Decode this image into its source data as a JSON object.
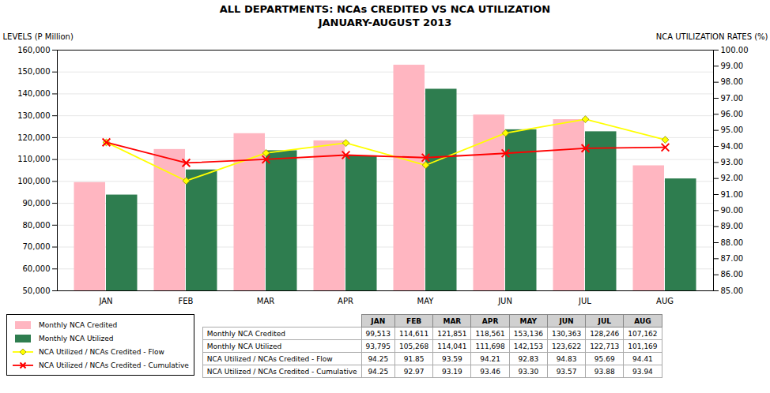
{
  "chart_data": {
    "type": "bar",
    "title": "ALL DEPARTMENTS: NCAs CREDITED VS NCA UTILIZATION",
    "subtitle": "JANUARY-AUGUST 2013",
    "categories": [
      "JAN",
      "FEB",
      "MAR",
      "APR",
      "MAY",
      "JUN",
      "JUL",
      "AUG"
    ],
    "series": [
      {
        "name": "Monthly NCA Credited",
        "type": "bar",
        "color": "#FFB6C1",
        "values": [
          99513,
          114611,
          121851,
          118561,
          153136,
          130363,
          128246,
          107162
        ],
        "value_labels": [
          "99,513",
          "114,611",
          "121,851",
          "118,561",
          "153,136",
          "130,363",
          "128,246",
          "107,162"
        ]
      },
      {
        "name": "Monthly NCA Utilized",
        "type": "bar",
        "color": "#2E7D4F",
        "values": [
          93795,
          105268,
          114041,
          111698,
          142153,
          123622,
          122713,
          101169
        ],
        "value_labels": [
          "93,795",
          "105,268",
          "114,041",
          "111,698",
          "142,153",
          "123,622",
          "122,713",
          "101,169"
        ]
      },
      {
        "name": "NCA Utilized / NCAs Credited - Flow",
        "type": "line",
        "axis": "y2",
        "marker": "diamond",
        "color": "#FFFF00",
        "values": [
          94.25,
          91.85,
          93.59,
          94.21,
          92.83,
          94.83,
          95.69,
          94.41
        ],
        "value_labels": [
          "94.25",
          "91.85",
          "93.59",
          "94.21",
          "92.83",
          "94.83",
          "95.69",
          "94.41"
        ]
      },
      {
        "name": "NCA Utilized / NCAs Credited - Cumulative",
        "type": "line",
        "axis": "y2",
        "marker": "x",
        "color": "#FF0000",
        "values": [
          94.25,
          92.97,
          93.19,
          93.46,
          93.3,
          93.57,
          93.88,
          93.94
        ],
        "value_labels": [
          "94.25",
          "92.97",
          "93.19",
          "93.46",
          "93.30",
          "93.57",
          "93.88",
          "93.94"
        ]
      }
    ],
    "ylabel": "LEVELS (P Million)",
    "y2label": "NCA UTILIZATION RATES (%)",
    "ylim": [
      50000,
      160000
    ],
    "yticks": [
      {
        "value": 50000,
        "label": "50,000"
      },
      {
        "value": 60000,
        "label": "60,000"
      },
      {
        "value": 70000,
        "label": "70,000"
      },
      {
        "value": 80000,
        "label": "80,000"
      },
      {
        "value": 90000,
        "label": "90,000"
      },
      {
        "value": 100000,
        "label": "100,000"
      },
      {
        "value": 110000,
        "label": "110,000"
      },
      {
        "value": 120000,
        "label": "120,000"
      },
      {
        "value": 130000,
        "label": "130,000"
      },
      {
        "value": 140000,
        "label": "140,000"
      },
      {
        "value": 150000,
        "label": "150,000"
      },
      {
        "value": 160000,
        "label": "160,000"
      }
    ],
    "y2lim": [
      85.0,
      100.0
    ],
    "y2ticks": [
      {
        "value": 85,
        "label": "85.00"
      },
      {
        "value": 86,
        "label": "86.00"
      },
      {
        "value": 87,
        "label": "87.00"
      },
      {
        "value": 88,
        "label": "88.00"
      },
      {
        "value": 89,
        "label": "89.00"
      },
      {
        "value": 90,
        "label": "90.00"
      },
      {
        "value": 91,
        "label": "91.00"
      },
      {
        "value": 92,
        "label": "92.00"
      },
      {
        "value": 93,
        "label": "93.00"
      },
      {
        "value": 94,
        "label": "94.00"
      },
      {
        "value": 95,
        "label": "95.00"
      },
      {
        "value": 96,
        "label": "96.00"
      },
      {
        "value": 97,
        "label": "97.00"
      },
      {
        "value": 98,
        "label": "98.00"
      },
      {
        "value": 99,
        "label": "99.00"
      },
      {
        "value": 100,
        "label": "100.00"
      }
    ],
    "grid": true,
    "legend": "lower left"
  }
}
